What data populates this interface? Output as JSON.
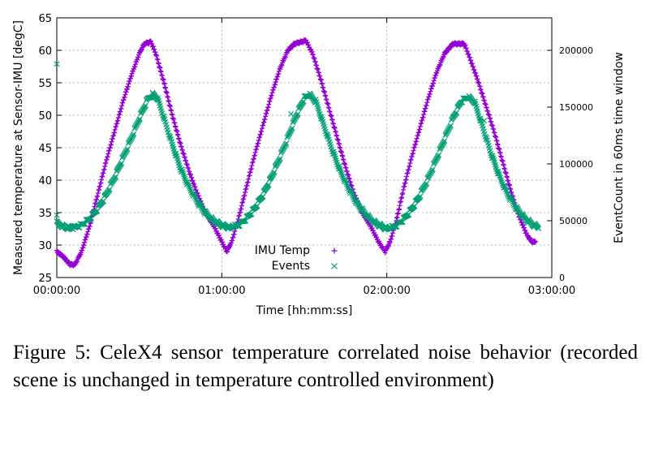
{
  "chart_data": {
    "type": "scatter",
    "xlabel": "Time [hh:mm:ss]",
    "ylabel": "Measured temperature at Sensor-IMU [degC]",
    "y2label": "EventCount in 60ms time window",
    "x_ticks": [
      "00:00:00",
      "01:00:00",
      "02:00:00",
      "03:00:00"
    ],
    "x_tick_values_hours": [
      0,
      1,
      2,
      3
    ],
    "xlim_hours": [
      0,
      3
    ],
    "ylim": [
      25,
      65
    ],
    "y_ticks": [
      25,
      30,
      35,
      40,
      45,
      50,
      55,
      60,
      65
    ],
    "y2lim": [
      0,
      228571
    ],
    "y2_ticks": [
      0,
      50000,
      100000,
      150000,
      200000
    ],
    "grid": true,
    "legend_position": "bottom-center",
    "series": [
      {
        "name": "IMU Temp",
        "marker": "+",
        "color": "#9400d3",
        "axis": "left",
        "points": [
          [
            0.0,
            29.0
          ],
          [
            0.04,
            28.2
          ],
          [
            0.08,
            27.0
          ],
          [
            0.11,
            27.0
          ],
          [
            0.15,
            29.0
          ],
          [
            0.2,
            33.0
          ],
          [
            0.25,
            38.0
          ],
          [
            0.3,
            43.0
          ],
          [
            0.35,
            47.5
          ],
          [
            0.4,
            52.0
          ],
          [
            0.45,
            56.0
          ],
          [
            0.5,
            59.5
          ],
          [
            0.53,
            61.0
          ],
          [
            0.57,
            61.3
          ],
          [
            0.6,
            59.5
          ],
          [
            0.65,
            55.0
          ],
          [
            0.7,
            50.0
          ],
          [
            0.75,
            45.5
          ],
          [
            0.8,
            41.5
          ],
          [
            0.85,
            38.0
          ],
          [
            0.9,
            35.0
          ],
          [
            0.95,
            33.0
          ],
          [
            1.0,
            30.5
          ],
          [
            1.03,
            29.0
          ],
          [
            1.06,
            30.5
          ],
          [
            1.1,
            34.0
          ],
          [
            1.15,
            39.0
          ],
          [
            1.2,
            44.0
          ],
          [
            1.25,
            48.5
          ],
          [
            1.3,
            53.0
          ],
          [
            1.35,
            57.0
          ],
          [
            1.4,
            60.0
          ],
          [
            1.44,
            61.0
          ],
          [
            1.51,
            61.5
          ],
          [
            1.55,
            59.5
          ],
          [
            1.6,
            55.5
          ],
          [
            1.65,
            51.0
          ],
          [
            1.7,
            46.5
          ],
          [
            1.75,
            42.0
          ],
          [
            1.8,
            38.0
          ],
          [
            1.85,
            35.0
          ],
          [
            1.9,
            33.0
          ],
          [
            1.95,
            30.5
          ],
          [
            1.99,
            29.0
          ],
          [
            2.02,
            30.5
          ],
          [
            2.06,
            34.0
          ],
          [
            2.1,
            38.5
          ],
          [
            2.15,
            43.5
          ],
          [
            2.2,
            48.0
          ],
          [
            2.25,
            52.5
          ],
          [
            2.3,
            56.5
          ],
          [
            2.35,
            59.5
          ],
          [
            2.4,
            61.0
          ],
          [
            2.47,
            61.0
          ],
          [
            2.5,
            59.0
          ],
          [
            2.55,
            55.5
          ],
          [
            2.6,
            51.5
          ],
          [
            2.65,
            47.5
          ],
          [
            2.7,
            43.0
          ],
          [
            2.75,
            38.5
          ],
          [
            2.8,
            34.5
          ],
          [
            2.85,
            31.5
          ],
          [
            2.88,
            30.5
          ],
          [
            2.9,
            30.5
          ]
        ]
      },
      {
        "name": "Events",
        "marker": "x",
        "color": "#009e73",
        "axis": "right",
        "points": [
          [
            0.0,
            48000
          ],
          [
            0.05,
            44000
          ],
          [
            0.1,
            44000
          ],
          [
            0.15,
            46000
          ],
          [
            0.2,
            52000
          ],
          [
            0.25,
            61000
          ],
          [
            0.3,
            73000
          ],
          [
            0.35,
            88000
          ],
          [
            0.4,
            105000
          ],
          [
            0.45,
            122000
          ],
          [
            0.5,
            140000
          ],
          [
            0.55,
            157000
          ],
          [
            0.58,
            161000
          ],
          [
            0.61,
            158000
          ],
          [
            0.65,
            140000
          ],
          [
            0.7,
            117000
          ],
          [
            0.75,
            96000
          ],
          [
            0.8,
            80000
          ],
          [
            0.85,
            67000
          ],
          [
            0.9,
            57000
          ],
          [
            0.95,
            50000
          ],
          [
            1.0,
            46000
          ],
          [
            1.05,
            44000
          ],
          [
            1.1,
            46000
          ],
          [
            1.15,
            52000
          ],
          [
            1.2,
            61000
          ],
          [
            1.25,
            73000
          ],
          [
            1.3,
            88000
          ],
          [
            1.35,
            105000
          ],
          [
            1.4,
            123000
          ],
          [
            1.45,
            142000
          ],
          [
            1.5,
            158000
          ],
          [
            1.53,
            161000
          ],
          [
            1.57,
            155000
          ],
          [
            1.62,
            133000
          ],
          [
            1.67,
            112000
          ],
          [
            1.72,
            93000
          ],
          [
            1.77,
            78000
          ],
          [
            1.82,
            65000
          ],
          [
            1.87,
            56000
          ],
          [
            1.92,
            49000
          ],
          [
            1.97,
            45000
          ],
          [
            2.0,
            43000
          ],
          [
            2.05,
            45000
          ],
          [
            2.1,
            51000
          ],
          [
            2.15,
            60000
          ],
          [
            2.2,
            72000
          ],
          [
            2.25,
            87000
          ],
          [
            2.3,
            104000
          ],
          [
            2.35,
            122000
          ],
          [
            2.4,
            140000
          ],
          [
            2.45,
            155000
          ],
          [
            2.49,
            159000
          ],
          [
            2.53,
            155000
          ],
          [
            2.58,
            133000
          ],
          [
            2.63,
            110000
          ],
          [
            2.68,
            90000
          ],
          [
            2.73,
            74000
          ],
          [
            2.78,
            62000
          ],
          [
            2.83,
            53000
          ],
          [
            2.88,
            47000
          ],
          [
            2.92,
            44000
          ]
        ],
        "outliers": [
          [
            0.0,
            188000
          ],
          [
            0.0,
            55000
          ],
          [
            1.42,
            144000
          ],
          [
            2.59,
            138000
          ],
          [
            1.51,
            160000
          ]
        ]
      }
    ]
  },
  "caption": "Figure 5: CeleX4 sensor temperature correlated noise behavior (recorded scene is unchanged in temperature controlled environment)"
}
